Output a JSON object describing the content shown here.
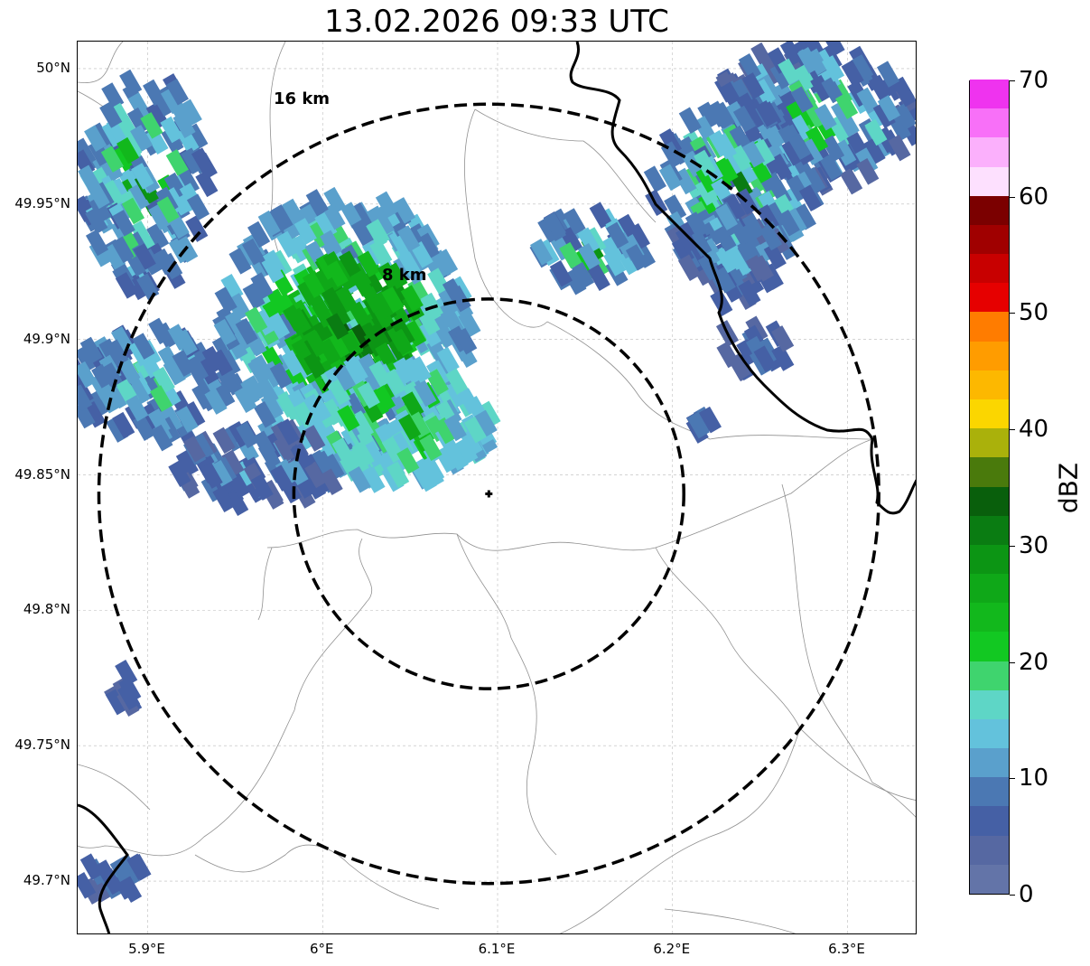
{
  "title": "13.02.2026 09:33 UTC",
  "map": {
    "lon_range": [
      5.86,
      6.34
    ],
    "lat_range": [
      49.68,
      50.01
    ],
    "radar_site": {
      "lon": 6.095,
      "lat": 49.843
    },
    "rings": [
      {
        "label": "8 km",
        "radius_km": 8
      },
      {
        "label": "16 km",
        "radius_km": 16
      }
    ],
    "x_ticks": [
      "5.9°E",
      "6°E",
      "6.1°E",
      "6.2°E",
      "6.3°E"
    ],
    "y_ticks": [
      "50°N",
      "49.95°N",
      "49.9°N",
      "49.85°N",
      "49.8°N",
      "49.75°N",
      "49.7°N"
    ],
    "grid": true
  },
  "colorbar": {
    "label": "dBZ",
    "range": [
      0,
      70
    ],
    "ticks": [
      "0",
      "10",
      "20",
      "30",
      "40",
      "50",
      "60",
      "70"
    ],
    "colors": [
      "#6374a8",
      "#5668a2",
      "#4560a5",
      "#4b78b3",
      "#5aa0cc",
      "#63c2dc",
      "#5ed6c6",
      "#3fd46e",
      "#12c822",
      "#12b81c",
      "#0fa818",
      "#0c9514",
      "#0a7c12",
      "#095f0c",
      "#4a7a0c",
      "#aab10b",
      "#fbd600",
      "#fdb800",
      "#ff9c00",
      "#ff7c00",
      "#e60000",
      "#c80000",
      "#a00000",
      "#7b0000",
      "#fde0fe",
      "#fbb0fc",
      "#f870f8",
      "#ef33ef"
    ]
  }
}
